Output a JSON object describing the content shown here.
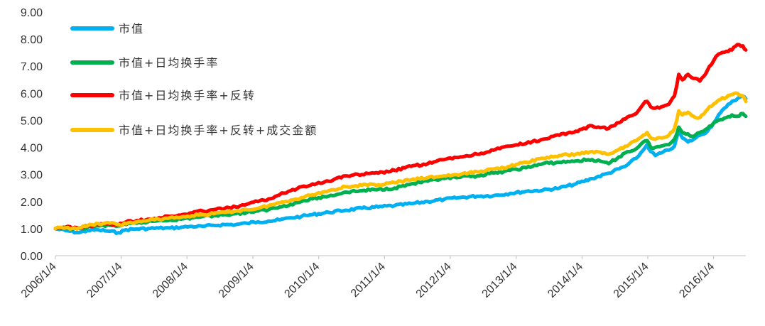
{
  "chart_data": {
    "type": "line",
    "title": "",
    "xlabel": "",
    "ylabel": "",
    "ylim": [
      0,
      9
    ],
    "yticks": [
      "0.00",
      "1.00",
      "2.00",
      "3.00",
      "4.00",
      "5.00",
      "6.00",
      "7.00",
      "8.00",
      "9.00"
    ],
    "xlim": [
      "2006-01-04",
      "2016-07-01"
    ],
    "xticks": [
      {
        "label": "2006/1/4",
        "date": "2006-01-04"
      },
      {
        "label": "2007/1/4",
        "date": "2007-01-04"
      },
      {
        "label": "2008/1/4",
        "date": "2008-01-04"
      },
      {
        "label": "2009/1/4",
        "date": "2009-01-04"
      },
      {
        "label": "2010/1/4",
        "date": "2010-01-04"
      },
      {
        "label": "2011/1/4",
        "date": "2011-01-04"
      },
      {
        "label": "2012/1/4",
        "date": "2012-01-04"
      },
      {
        "label": "2013/1/4",
        "date": "2013-01-04"
      },
      {
        "label": "2014/1/4",
        "date": "2014-01-04"
      },
      {
        "label": "2015/1/4",
        "date": "2015-01-04"
      },
      {
        "label": "2016/1/4",
        "date": "2016-01-04"
      }
    ],
    "grid": false,
    "legend_position": "top-left",
    "series": [
      {
        "name": "市值",
        "color": "#00B0F0",
        "points": [
          [
            "2006-01-04",
            1.0
          ],
          [
            "2006-03-01",
            0.93
          ],
          [
            "2006-05-15",
            0.85
          ],
          [
            "2006-07-01",
            0.93
          ],
          [
            "2006-09-01",
            0.95
          ],
          [
            "2006-11-01",
            0.9
          ],
          [
            "2006-12-20",
            0.85
          ],
          [
            "2007-02-01",
            0.96
          ],
          [
            "2007-04-01",
            0.99
          ],
          [
            "2007-06-01",
            1.0
          ],
          [
            "2007-08-01",
            1.02
          ],
          [
            "2007-10-01",
            1.02
          ],
          [
            "2007-12-01",
            1.05
          ],
          [
            "2008-02-01",
            1.08
          ],
          [
            "2008-04-01",
            1.08
          ],
          [
            "2008-06-01",
            1.12
          ],
          [
            "2008-08-01",
            1.15
          ],
          [
            "2008-10-01",
            1.15
          ],
          [
            "2008-12-01",
            1.2
          ],
          [
            "2009-02-01",
            1.25
          ],
          [
            "2009-04-01",
            1.28
          ],
          [
            "2009-06-01",
            1.32
          ],
          [
            "2009-08-01",
            1.4
          ],
          [
            "2009-10-01",
            1.45
          ],
          [
            "2009-12-01",
            1.52
          ],
          [
            "2010-03-01",
            1.6
          ],
          [
            "2010-06-01",
            1.68
          ],
          [
            "2010-09-01",
            1.75
          ],
          [
            "2010-12-01",
            1.8
          ],
          [
            "2011-03-01",
            1.85
          ],
          [
            "2011-06-01",
            1.92
          ],
          [
            "2011-09-01",
            2.0
          ],
          [
            "2011-12-01",
            2.08
          ],
          [
            "2012-03-01",
            2.15
          ],
          [
            "2012-06-01",
            2.2
          ],
          [
            "2012-09-01",
            2.22
          ],
          [
            "2012-12-01",
            2.3
          ],
          [
            "2013-03-01",
            2.38
          ],
          [
            "2013-06-01",
            2.42
          ],
          [
            "2013-09-01",
            2.5
          ],
          [
            "2013-12-01",
            2.65
          ],
          [
            "2014-03-01",
            2.85
          ],
          [
            "2014-06-01",
            3.05
          ],
          [
            "2014-09-01",
            3.3
          ],
          [
            "2014-11-01",
            3.6
          ],
          [
            "2014-12-10",
            3.9
          ],
          [
            "2014-12-31",
            4.1
          ],
          [
            "2015-01-20",
            3.85
          ],
          [
            "2015-02-15",
            3.7
          ],
          [
            "2015-03-20",
            3.8
          ],
          [
            "2015-05-01",
            3.9
          ],
          [
            "2015-06-01",
            4.05
          ],
          [
            "2015-06-25",
            4.6
          ],
          [
            "2015-07-15",
            4.35
          ],
          [
            "2015-08-15",
            4.2
          ],
          [
            "2015-09-15",
            4.3
          ],
          [
            "2015-10-20",
            4.45
          ],
          [
            "2015-12-01",
            4.6
          ],
          [
            "2016-01-04",
            4.9
          ],
          [
            "2016-02-01",
            5.2
          ],
          [
            "2016-03-15",
            5.5
          ],
          [
            "2016-04-15",
            5.7
          ],
          [
            "2016-05-15",
            5.8
          ],
          [
            "2016-06-15",
            5.9
          ],
          [
            "2016-07-01",
            5.8
          ]
        ]
      },
      {
        "name": "市值+日均换手率",
        "color": "#00B050",
        "points": [
          [
            "2006-01-04",
            1.0
          ],
          [
            "2006-03-01",
            1.02
          ],
          [
            "2006-05-15",
            1.0
          ],
          [
            "2006-07-01",
            1.05
          ],
          [
            "2006-09-01",
            1.1
          ],
          [
            "2006-11-01",
            1.12
          ],
          [
            "2006-12-20",
            1.1
          ],
          [
            "2007-02-01",
            1.15
          ],
          [
            "2007-04-01",
            1.2
          ],
          [
            "2007-06-01",
            1.25
          ],
          [
            "2007-08-01",
            1.3
          ],
          [
            "2007-10-01",
            1.32
          ],
          [
            "2007-12-01",
            1.35
          ],
          [
            "2008-02-01",
            1.4
          ],
          [
            "2008-04-01",
            1.45
          ],
          [
            "2008-06-01",
            1.48
          ],
          [
            "2008-08-01",
            1.52
          ],
          [
            "2008-10-01",
            1.55
          ],
          [
            "2008-12-01",
            1.6
          ],
          [
            "2009-02-01",
            1.65
          ],
          [
            "2009-04-01",
            1.7
          ],
          [
            "2009-06-01",
            1.8
          ],
          [
            "2009-08-01",
            1.9
          ],
          [
            "2009-10-01",
            2.0
          ],
          [
            "2009-12-01",
            2.1
          ],
          [
            "2010-03-01",
            2.2
          ],
          [
            "2010-06-01",
            2.35
          ],
          [
            "2010-09-01",
            2.4
          ],
          [
            "2010-12-01",
            2.45
          ],
          [
            "2011-03-01",
            2.5
          ],
          [
            "2011-06-01",
            2.65
          ],
          [
            "2011-09-01",
            2.75
          ],
          [
            "2011-12-01",
            2.85
          ],
          [
            "2012-03-01",
            2.9
          ],
          [
            "2012-06-01",
            2.95
          ],
          [
            "2012-09-01",
            3.05
          ],
          [
            "2012-12-01",
            3.15
          ],
          [
            "2013-03-01",
            3.25
          ],
          [
            "2013-06-01",
            3.4
          ],
          [
            "2013-09-01",
            3.45
          ],
          [
            "2013-12-01",
            3.5
          ],
          [
            "2014-03-01",
            3.55
          ],
          [
            "2014-06-01",
            3.4
          ],
          [
            "2014-09-01",
            3.8
          ],
          [
            "2014-11-01",
            3.95
          ],
          [
            "2014-12-10",
            4.2
          ],
          [
            "2014-12-31",
            4.25
          ],
          [
            "2015-01-20",
            4.0
          ],
          [
            "2015-02-15",
            4.0
          ],
          [
            "2015-03-20",
            4.05
          ],
          [
            "2015-05-01",
            4.1
          ],
          [
            "2015-06-01",
            4.3
          ],
          [
            "2015-06-25",
            4.75
          ],
          [
            "2015-07-15",
            4.55
          ],
          [
            "2015-08-15",
            4.5
          ],
          [
            "2015-09-15",
            4.4
          ],
          [
            "2015-10-20",
            4.55
          ],
          [
            "2015-12-01",
            4.7
          ],
          [
            "2016-01-04",
            4.9
          ],
          [
            "2016-02-01",
            5.0
          ],
          [
            "2016-03-15",
            5.1
          ],
          [
            "2016-04-15",
            5.2
          ],
          [
            "2016-05-15",
            5.15
          ],
          [
            "2016-06-15",
            5.25
          ],
          [
            "2016-07-01",
            5.15
          ]
        ]
      },
      {
        "name": "市值+日均换手率+反转",
        "color": "#FF0000",
        "points": [
          [
            "2006-01-04",
            1.0
          ],
          [
            "2006-03-01",
            1.05
          ],
          [
            "2006-05-15",
            1.02
          ],
          [
            "2006-07-01",
            1.1
          ],
          [
            "2006-09-01",
            1.15
          ],
          [
            "2006-11-01",
            1.18
          ],
          [
            "2006-12-20",
            1.15
          ],
          [
            "2007-02-01",
            1.25
          ],
          [
            "2007-04-01",
            1.3
          ],
          [
            "2007-06-01",
            1.35
          ],
          [
            "2007-08-01",
            1.4
          ],
          [
            "2007-10-01",
            1.45
          ],
          [
            "2007-12-01",
            1.5
          ],
          [
            "2008-02-01",
            1.58
          ],
          [
            "2008-04-01",
            1.65
          ],
          [
            "2008-06-01",
            1.7
          ],
          [
            "2008-08-01",
            1.75
          ],
          [
            "2008-10-01",
            1.8
          ],
          [
            "2008-12-01",
            1.9
          ],
          [
            "2009-02-01",
            2.0
          ],
          [
            "2009-04-01",
            2.1
          ],
          [
            "2009-06-01",
            2.25
          ],
          [
            "2009-08-01",
            2.4
          ],
          [
            "2009-10-01",
            2.55
          ],
          [
            "2009-12-01",
            2.65
          ],
          [
            "2010-03-01",
            2.75
          ],
          [
            "2010-06-01",
            2.95
          ],
          [
            "2010-09-01",
            3.0
          ],
          [
            "2010-12-01",
            3.05
          ],
          [
            "2011-03-01",
            3.15
          ],
          [
            "2011-06-01",
            3.3
          ],
          [
            "2011-09-01",
            3.4
          ],
          [
            "2011-12-01",
            3.55
          ],
          [
            "2012-03-01",
            3.65
          ],
          [
            "2012-06-01",
            3.75
          ],
          [
            "2012-09-01",
            3.9
          ],
          [
            "2012-12-01",
            4.05
          ],
          [
            "2013-03-01",
            4.15
          ],
          [
            "2013-06-01",
            4.3
          ],
          [
            "2013-09-01",
            4.45
          ],
          [
            "2013-12-01",
            4.6
          ],
          [
            "2014-03-01",
            4.8
          ],
          [
            "2014-06-01",
            4.7
          ],
          [
            "2014-09-01",
            5.05
          ],
          [
            "2014-11-01",
            5.25
          ],
          [
            "2014-12-10",
            5.6
          ],
          [
            "2014-12-31",
            5.7
          ],
          [
            "2015-01-20",
            5.5
          ],
          [
            "2015-02-15",
            5.45
          ],
          [
            "2015-03-20",
            5.5
          ],
          [
            "2015-05-01",
            5.6
          ],
          [
            "2015-06-01",
            5.9
          ],
          [
            "2015-06-25",
            6.7
          ],
          [
            "2015-07-15",
            6.5
          ],
          [
            "2015-08-15",
            6.7
          ],
          [
            "2015-09-15",
            6.55
          ],
          [
            "2015-10-20",
            6.45
          ],
          [
            "2015-12-01",
            6.85
          ],
          [
            "2016-01-04",
            7.2
          ],
          [
            "2016-02-01",
            7.45
          ],
          [
            "2016-03-15",
            7.55
          ],
          [
            "2016-04-15",
            7.6
          ],
          [
            "2016-05-15",
            7.8
          ],
          [
            "2016-06-15",
            7.75
          ],
          [
            "2016-07-01",
            7.6
          ]
        ]
      },
      {
        "name": "市值+日均换手率+反转+成交金额",
        "color": "#FFC000",
        "points": [
          [
            "2006-01-04",
            1.0
          ],
          [
            "2006-03-01",
            1.03
          ],
          [
            "2006-05-15",
            1.02
          ],
          [
            "2006-07-01",
            1.1
          ],
          [
            "2006-09-01",
            1.18
          ],
          [
            "2006-11-01",
            1.2
          ],
          [
            "2006-12-20",
            1.15
          ],
          [
            "2007-02-01",
            1.18
          ],
          [
            "2007-04-01",
            1.25
          ],
          [
            "2007-06-01",
            1.3
          ],
          [
            "2007-08-01",
            1.35
          ],
          [
            "2007-10-01",
            1.4
          ],
          [
            "2007-12-01",
            1.42
          ],
          [
            "2008-02-01",
            1.48
          ],
          [
            "2008-04-01",
            1.52
          ],
          [
            "2008-06-01",
            1.55
          ],
          [
            "2008-08-01",
            1.6
          ],
          [
            "2008-10-01",
            1.65
          ],
          [
            "2008-12-01",
            1.7
          ],
          [
            "2009-02-01",
            1.75
          ],
          [
            "2009-04-01",
            1.85
          ],
          [
            "2009-06-01",
            1.95
          ],
          [
            "2009-08-01",
            2.05
          ],
          [
            "2009-10-01",
            2.15
          ],
          [
            "2009-12-01",
            2.25
          ],
          [
            "2010-03-01",
            2.4
          ],
          [
            "2010-06-01",
            2.55
          ],
          [
            "2010-09-01",
            2.6
          ],
          [
            "2010-12-01",
            2.62
          ],
          [
            "2011-03-01",
            2.7
          ],
          [
            "2011-06-01",
            2.8
          ],
          [
            "2011-09-01",
            2.88
          ],
          [
            "2011-12-01",
            2.95
          ],
          [
            "2012-03-01",
            3.0
          ],
          [
            "2012-06-01",
            3.1
          ],
          [
            "2012-09-01",
            3.2
          ],
          [
            "2012-12-01",
            3.3
          ],
          [
            "2013-03-01",
            3.45
          ],
          [
            "2013-06-01",
            3.6
          ],
          [
            "2013-09-01",
            3.7
          ],
          [
            "2013-12-01",
            3.75
          ],
          [
            "2014-03-01",
            3.85
          ],
          [
            "2014-06-01",
            3.75
          ],
          [
            "2014-09-01",
            4.05
          ],
          [
            "2014-11-01",
            4.25
          ],
          [
            "2014-12-10",
            4.45
          ],
          [
            "2014-12-31",
            4.55
          ],
          [
            "2015-01-20",
            4.35
          ],
          [
            "2015-02-15",
            4.3
          ],
          [
            "2015-03-20",
            4.35
          ],
          [
            "2015-05-01",
            4.45
          ],
          [
            "2015-06-01",
            4.7
          ],
          [
            "2015-06-25",
            5.35
          ],
          [
            "2015-07-15",
            5.2
          ],
          [
            "2015-08-15",
            5.3
          ],
          [
            "2015-09-15",
            5.15
          ],
          [
            "2015-10-20",
            5.1
          ],
          [
            "2015-12-01",
            5.4
          ],
          [
            "2016-01-04",
            5.6
          ],
          [
            "2016-02-01",
            5.75
          ],
          [
            "2016-03-15",
            5.85
          ],
          [
            "2016-04-15",
            5.95
          ],
          [
            "2016-05-15",
            6.0
          ],
          [
            "2016-06-15",
            5.9
          ],
          [
            "2016-07-01",
            5.7
          ]
        ]
      }
    ]
  }
}
